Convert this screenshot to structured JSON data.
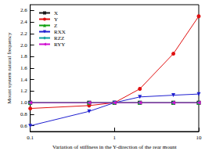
{
  "chart_data": {
    "type": "line",
    "x_label": "Variation of stiffness in the Y-direction of the rear mount",
    "y_label": "Mount system natural frequency",
    "log": "x",
    "legend": "top-left",
    "xlim": [
      0.1,
      10
    ],
    "xticks": [
      0.1,
      1,
      10
    ],
    "ylim": [
      0.5,
      2.7
    ],
    "yticks": [
      0.6,
      0.8,
      {
        "value": 1,
        "label": "1.0"
      },
      1.2,
      1.4,
      1.6,
      1.8,
      {
        "value": 2,
        "label": "2.0"
      },
      2.2,
      2.4,
      2.6
    ],
    "x": [
      0.1,
      0.5,
      1,
      2,
      5,
      10
    ],
    "series": [
      {
        "name": "X",
        "color": "#1a1a1a",
        "marker": "square",
        "values": [
          1.0,
          1.0,
          1.0,
          1.0,
          1.0,
          1.0
        ]
      },
      {
        "name": "Y",
        "color": "#e01010",
        "marker": "circle",
        "values": [
          0.9,
          0.95,
          1.0,
          1.24,
          1.85,
          2.5
        ]
      },
      {
        "name": "Z",
        "color": "#10a010",
        "marker": "triangle",
        "values": [
          1.0,
          1.0,
          1.0,
          1.0,
          1.0,
          1.0
        ]
      },
      {
        "name": "RXX",
        "color": "#2020d0",
        "marker": "triangle_down",
        "values": [
          0.6,
          0.85,
          1.0,
          1.1,
          1.13,
          1.15
        ]
      },
      {
        "name": "RZZ",
        "color": "#10a0a0",
        "marker": "diamond",
        "values": [
          1.0,
          1.0,
          1.0,
          1.0,
          1.0,
          1.0
        ]
      },
      {
        "name": "RYY",
        "color": "#d010d0",
        "marker": "triangle_left",
        "values": [
          1.0,
          1.0,
          1.0,
          1.0,
          1.0,
          1.0
        ]
      }
    ]
  }
}
